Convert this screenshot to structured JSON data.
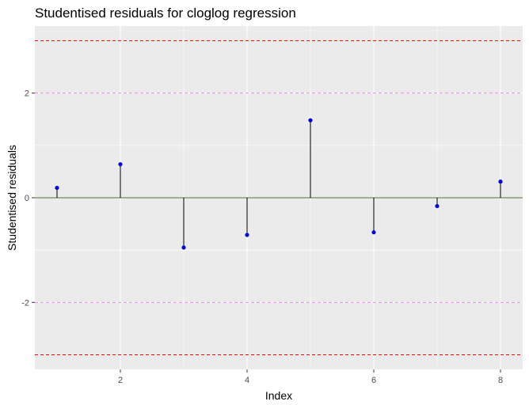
{
  "chart_data": {
    "type": "scatter",
    "style": "lollipop",
    "title": "Studentised residuals for cloglog regression",
    "xlabel": "Index",
    "ylabel": "Studentised residuals",
    "xlim": [
      0.65,
      8.35
    ],
    "ylim": [
      -3.28,
      3.28
    ],
    "xticks": [
      2,
      4,
      6,
      8
    ],
    "xtick_labels": [
      "2",
      "4",
      "6",
      "8"
    ],
    "yticks": [
      -2,
      0,
      2
    ],
    "ytick_labels": [
      "-2",
      "0",
      "2"
    ],
    "grid": true,
    "series": [
      {
        "x": [
          1,
          2,
          3,
          4,
          5,
          6,
          7,
          8
        ],
        "y": [
          0.19,
          0.64,
          -0.95,
          -0.71,
          1.48,
          -0.66,
          -0.16,
          0.31
        ]
      }
    ],
    "reference_lines": [
      {
        "y": 0,
        "style": "solid",
        "color": "#556b2f"
      },
      {
        "y": 2,
        "style": "dashed",
        "color": "#ee82ee"
      },
      {
        "y": -2,
        "style": "dashed",
        "color": "#ee82ee"
      },
      {
        "y": 3,
        "style": "dashed",
        "color": "#ff0000"
      },
      {
        "y": -3,
        "style": "dashed",
        "color": "#ff0000"
      }
    ],
    "colors": {
      "panel": "#ebebeb",
      "grid": "#ffffff",
      "point": "#0000cd",
      "stem": "#000000"
    }
  }
}
